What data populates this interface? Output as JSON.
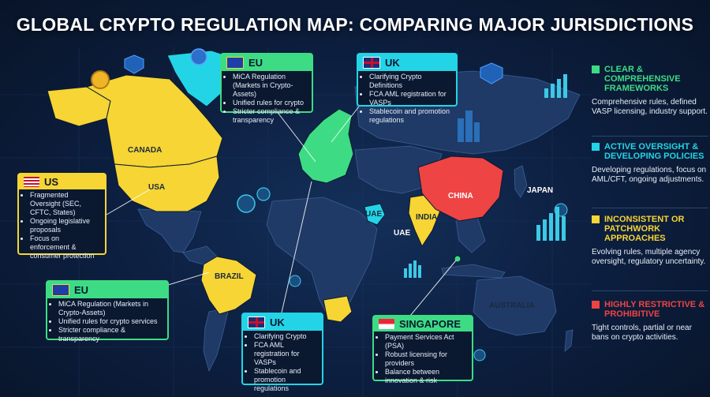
{
  "title": "GLOBAL CRYPTO REGULATION MAP: COMPARING MAJOR JURISDICTIONS",
  "colors": {
    "green": "#3ddc84",
    "cyan": "#23d4e6",
    "yellow": "#f6d534",
    "red": "#ee4444",
    "land": "#1f3a66"
  },
  "country_labels": {
    "canada": "CANADA",
    "usa": "USA",
    "brazil": "BRAZIL",
    "china": "CHINA",
    "japan": "JAPAN",
    "india": "INDIA",
    "uae_map": "UAE",
    "uae_sea": "UAE",
    "australia": "AUSTRALIA"
  },
  "cards": {
    "eu_top": {
      "title": "EU",
      "items": [
        "MiCA Regulation (Markets in Crypto-Assets)",
        "Unified rules for crypto",
        "Stricter compliance & transparency"
      ]
    },
    "uk_top": {
      "title": "UK",
      "items": [
        "Clarifying Crypto Definitions",
        "FCA AML registration for VASPs",
        "Stablecoin and promotion regulations"
      ]
    },
    "us": {
      "title": "US",
      "items": [
        "Fragmented Oversight (SEC, CFTC, States)",
        "Ongoing legislative proposals",
        "Focus on enforcement & consumer protection"
      ]
    },
    "eu_bottom": {
      "title": "EU",
      "items": [
        "MiCA Regulation (Markets in Crypto-Assets)",
        "Unified rules for crypto services",
        "Stricter compliance & transparency"
      ]
    },
    "uk_bottom": {
      "title": "UK",
      "items": [
        "Clarifying Crypto",
        "FCA AML registration for VASPs",
        "Stablecoin and promotion regulations"
      ]
    },
    "singapore": {
      "title": "SINGAPORE",
      "items": [
        "Payment Services Act (PSA)",
        "Robust licensing for providers",
        "Balance between innovation & risk"
      ]
    }
  },
  "legend": [
    {
      "heading": "CLEAR & COMPREHENSIVE FRAMEWORKS",
      "desc": "Comprehensive rules, defined VASP licensing, industry support.",
      "color": "#3ddc84"
    },
    {
      "heading": "ACTIVE OVERSIGHT & DEVELOPING POLICIES",
      "desc": "Developing regulations, focus on AML/CFT, ongoing adjustments.",
      "color": "#23d4e6"
    },
    {
      "heading": "INCONSISTENT OR PATCHWORK APPROACHES",
      "desc": "Evolving rules, multiple agency oversight, regulatory uncertainty.",
      "color": "#f6d534"
    },
    {
      "heading": "HIGHLY RESTRICTIVE & PROHIBITIVE",
      "desc": "Tight controls, partial or near bans on crypto activities.",
      "color": "#ee4444"
    }
  ],
  "map_data": {
    "regions": [
      {
        "name": "canada",
        "category": "yellow"
      },
      {
        "name": "usa",
        "category": "yellow"
      },
      {
        "name": "alaska",
        "category": "yellow"
      },
      {
        "name": "brazil",
        "category": "yellow"
      },
      {
        "name": "greenland",
        "category": "cyan"
      },
      {
        "name": "europe",
        "category": "green"
      },
      {
        "name": "uae",
        "category": "cyan"
      },
      {
        "name": "india",
        "category": "yellow"
      },
      {
        "name": "china",
        "category": "red"
      },
      {
        "name": "singapore",
        "category": "green"
      },
      {
        "name": "south-africa",
        "category": "yellow"
      }
    ]
  }
}
